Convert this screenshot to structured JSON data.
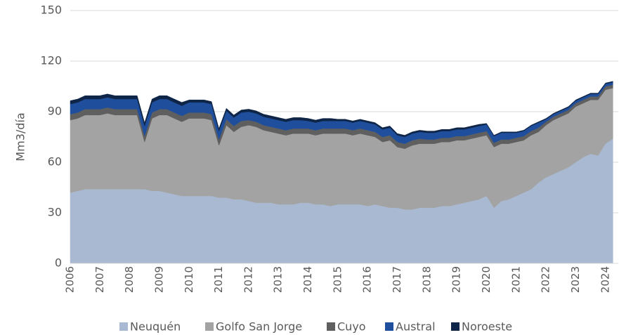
{
  "chart_data": {
    "type": "stacked_area",
    "y_label": "Mm3/día",
    "categories": [
      "2006",
      null,
      null,
      null,
      "2007",
      null,
      null,
      null,
      "2008",
      null,
      null,
      null,
      "2009",
      null,
      null,
      null,
      "2010",
      null,
      null,
      null,
      "2011",
      null,
      null,
      null,
      "2012",
      null,
      null,
      null,
      "2013",
      null,
      null,
      null,
      "2014",
      null,
      null,
      null,
      "2015",
      null,
      null,
      null,
      "2016",
      null,
      null,
      null,
      "2017",
      null,
      null,
      null,
      "2018",
      null,
      null,
      null,
      "2019",
      null,
      null,
      null,
      "2020",
      null,
      null,
      null,
      "2021",
      null,
      null,
      null,
      "2022",
      null,
      null,
      null,
      "2023",
      null,
      null,
      null,
      "2024",
      null
    ],
    "series": [
      {
        "name": "Neuquén",
        "color": "#a9b9d1",
        "values": [
          42,
          43,
          44,
          44,
          44,
          44,
          44,
          44,
          44,
          44,
          44,
          43,
          43,
          42,
          41,
          40,
          40,
          40,
          40,
          40,
          39,
          39,
          38,
          38,
          37,
          36,
          36,
          36,
          35,
          35,
          35,
          36,
          36,
          35,
          35,
          34,
          35,
          35,
          35,
          35,
          34,
          35,
          34,
          33,
          33,
          32,
          32,
          33,
          33,
          33,
          34,
          34,
          35,
          36,
          37,
          38,
          40,
          33,
          37,
          38,
          40,
          42,
          44,
          48,
          51,
          53,
          55,
          57,
          60,
          63,
          65,
          64,
          71,
          74
        ]
      },
      {
        "name": "Golfo San Jorge",
        "color": "#a3a3a3",
        "values": [
          43,
          43,
          44,
          44,
          44,
          45,
          44,
          44,
          44,
          44,
          28,
          43,
          45,
          46,
          45,
          44,
          46,
          46,
          46,
          45,
          31,
          43,
          40,
          43,
          45,
          45,
          43,
          42,
          42,
          41,
          42,
          41,
          41,
          41,
          42,
          43,
          42,
          42,
          41,
          42,
          42,
          40,
          38,
          40,
          36,
          36,
          38,
          38,
          38,
          38,
          38,
          38,
          38,
          37,
          37,
          37,
          36,
          36,
          34,
          33,
          32,
          31,
          32,
          30,
          31,
          32,
          32,
          32,
          33,
          32,
          32,
          33,
          32,
          30
        ]
      },
      {
        "name": "Cuyo",
        "color": "#5f5f5f",
        "values": [
          3.5,
          3.5,
          3.5,
          3.5,
          3.5,
          3.5,
          3.5,
          3.5,
          3.5,
          3.5,
          3.5,
          3.5,
          3.5,
          3.5,
          3.5,
          3.5,
          3.5,
          3.5,
          3.5,
          3.5,
          3.5,
          3.5,
          3.5,
          3.5,
          3,
          3,
          3,
          3,
          3,
          3,
          3,
          3,
          3,
          3,
          3,
          3,
          3,
          3,
          3,
          3,
          3,
          3,
          3,
          3,
          3,
          3,
          3,
          3,
          2.5,
          2.5,
          2.5,
          2.5,
          2.5,
          2.5,
          2.5,
          2.5,
          2.5,
          2.5,
          2.5,
          2.5,
          2.5,
          2.5,
          2.5,
          2.5,
          2,
          2,
          2,
          2,
          2,
          2,
          2,
          2,
          2,
          2
        ]
      },
      {
        "name": "Austral",
        "color": "#1f4f9c",
        "values": [
          6,
          6,
          6,
          6,
          6,
          6,
          6,
          6,
          6,
          6,
          6,
          6,
          6,
          6,
          6,
          6,
          6,
          6,
          6,
          6,
          5,
          5,
          5,
          5,
          5,
          5,
          5,
          5,
          5,
          5,
          5,
          5,
          4.5,
          4.5,
          4.5,
          4.5,
          4.5,
          4.5,
          4.5,
          4.5,
          4.5,
          4.5,
          4.5,
          4.5,
          4,
          4,
          4,
          4,
          4,
          4,
          4,
          4,
          4,
          4,
          4,
          4,
          4,
          4,
          4,
          4,
          3,
          3,
          3,
          3,
          1.5,
          1.5,
          1.5,
          1.5,
          1.5,
          1.5,
          1.5,
          1.5,
          1.5,
          1.5
        ]
      },
      {
        "name": "Noroeste",
        "color": "#0e2547",
        "values": [
          2,
          2,
          2,
          2,
          2,
          2,
          2,
          2,
          2,
          2,
          2,
          2,
          2,
          2,
          2,
          2,
          1.5,
          1.5,
          1.5,
          1.5,
          1.5,
          1.5,
          1.5,
          1.5,
          1.5,
          1.5,
          1.5,
          1.5,
          1.5,
          1.5,
          1.5,
          1.5,
          1.5,
          1.5,
          1.5,
          1.5,
          1,
          1,
          1,
          1,
          1,
          1,
          1,
          1,
          1,
          1,
          1,
          1,
          1,
          1,
          1,
          1,
          1,
          1,
          1,
          1,
          0.5,
          0.5,
          0.5,
          0.5,
          0.5,
          0.5,
          0.5,
          0.5,
          0.5,
          0.5,
          0.5,
          0.5,
          0.5,
          0.5,
          0.5,
          0.5,
          0.5,
          0.5
        ]
      }
    ],
    "ylim": [
      0,
      150
    ],
    "yticks": [
      0,
      30,
      60,
      90,
      120,
      150
    ],
    "grid": true,
    "legend": "bottom"
  }
}
